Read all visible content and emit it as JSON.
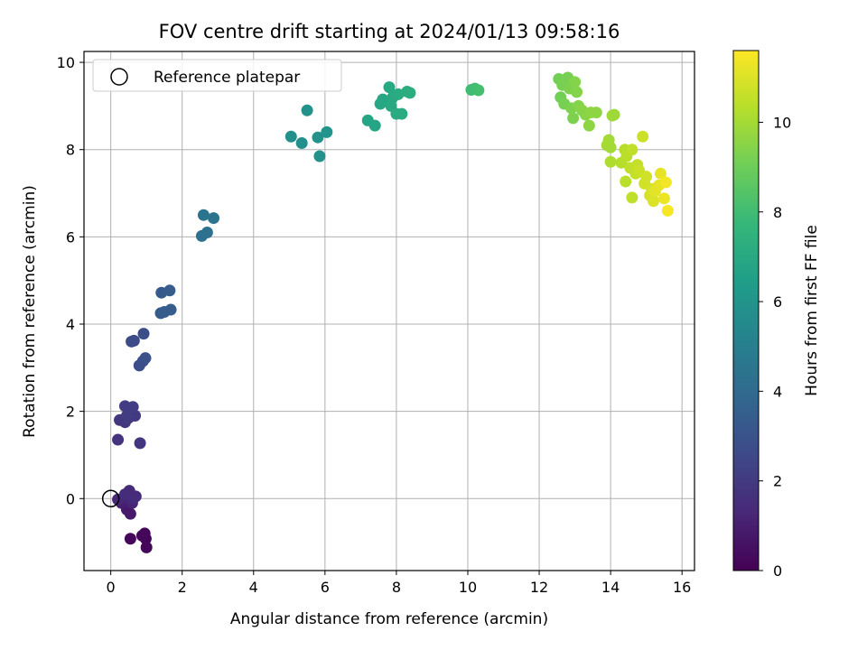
{
  "chart_data": {
    "type": "scatter",
    "title": "FOV centre drift starting at 2024/01/13 09:58:16",
    "xlabel": "Angular distance from reference (arcmin)",
    "ylabel": "Rotation from reference (arcmin)",
    "xlim": [
      -0.75,
      16.35
    ],
    "ylim": [
      -1.65,
      10.25
    ],
    "xticks": [
      0,
      2,
      4,
      6,
      8,
      10,
      12,
      14,
      16
    ],
    "yticks": [
      0,
      2,
      4,
      6,
      8,
      10
    ],
    "grid": true,
    "legend": {
      "placement": "upper-left",
      "label": "Reference platepar"
    },
    "reference_point": {
      "x": 0,
      "y": 0
    },
    "colorbar": {
      "label": "Hours from first FF file",
      "range": [
        0,
        11.6
      ],
      "ticks": [
        0,
        2,
        4,
        6,
        8,
        10
      ],
      "colormap": [
        "#440154",
        "#482878",
        "#3e4989",
        "#31688e",
        "#26828e",
        "#1f9e89",
        "#35b779",
        "#6ece58",
        "#b5de2b",
        "#fde725"
      ]
    },
    "points": [
      {
        "x": 0.95,
        "y": -0.8,
        "h": 0.1
      },
      {
        "x": 0.98,
        "y": -0.92,
        "h": 0.1
      },
      {
        "x": 1.0,
        "y": -1.12,
        "h": 0.2
      },
      {
        "x": 0.55,
        "y": -0.92,
        "h": 0.2
      },
      {
        "x": 0.88,
        "y": -0.85,
        "h": 0.2
      },
      {
        "x": 0.55,
        "y": -0.35,
        "h": 0.8
      },
      {
        "x": 0.45,
        "y": -0.25,
        "h": 0.8
      },
      {
        "x": 0.3,
        "y": -0.1,
        "h": 1.0
      },
      {
        "x": 0.5,
        "y": 0.05,
        "h": 1.0
      },
      {
        "x": 0.6,
        "y": -0.1,
        "h": 1.2
      },
      {
        "x": 0.45,
        "y": 0.0,
        "h": 1.2
      },
      {
        "x": 0.2,
        "y": -0.02,
        "h": 1.3
      },
      {
        "x": 0.7,
        "y": 0.05,
        "h": 1.4
      },
      {
        "x": 0.52,
        "y": 0.18,
        "h": 1.4
      },
      {
        "x": 0.62,
        "y": 0.02,
        "h": 1.5
      },
      {
        "x": 0.4,
        "y": 0.1,
        "h": 1.5
      },
      {
        "x": 0.2,
        "y": 1.35,
        "h": 1.7
      },
      {
        "x": 0.82,
        "y": 1.27,
        "h": 1.8
      },
      {
        "x": 0.25,
        "y": 1.8,
        "h": 1.9
      },
      {
        "x": 0.4,
        "y": 1.75,
        "h": 1.9
      },
      {
        "x": 0.5,
        "y": 1.85,
        "h": 2.0
      },
      {
        "x": 0.68,
        "y": 1.9,
        "h": 2.0
      },
      {
        "x": 0.4,
        "y": 2.12,
        "h": 2.1
      },
      {
        "x": 0.62,
        "y": 2.1,
        "h": 2.1
      },
      {
        "x": 0.45,
        "y": 1.9,
        "h": 2.1
      },
      {
        "x": 0.58,
        "y": 3.6,
        "h": 2.7
      },
      {
        "x": 0.65,
        "y": 3.62,
        "h": 2.7
      },
      {
        "x": 0.92,
        "y": 3.78,
        "h": 2.8
      },
      {
        "x": 0.8,
        "y": 3.05,
        "h": 2.8
      },
      {
        "x": 0.9,
        "y": 3.15,
        "h": 2.8
      },
      {
        "x": 0.97,
        "y": 3.22,
        "h": 2.9
      },
      {
        "x": 1.4,
        "y": 4.25,
        "h": 3.3
      },
      {
        "x": 1.42,
        "y": 4.72,
        "h": 3.3
      },
      {
        "x": 1.65,
        "y": 4.77,
        "h": 3.4
      },
      {
        "x": 1.68,
        "y": 4.33,
        "h": 3.4
      },
      {
        "x": 1.5,
        "y": 4.28,
        "h": 3.4
      },
      {
        "x": 2.55,
        "y": 6.02,
        "h": 4.3
      },
      {
        "x": 2.7,
        "y": 6.1,
        "h": 4.3
      },
      {
        "x": 2.6,
        "y": 6.5,
        "h": 4.4
      },
      {
        "x": 2.88,
        "y": 6.43,
        "h": 4.4
      },
      {
        "x": 5.05,
        "y": 8.3,
        "h": 5.8
      },
      {
        "x": 5.35,
        "y": 8.15,
        "h": 5.8
      },
      {
        "x": 5.5,
        "y": 8.9,
        "h": 5.9
      },
      {
        "x": 5.8,
        "y": 8.28,
        "h": 5.9
      },
      {
        "x": 5.85,
        "y": 7.85,
        "h": 5.9
      },
      {
        "x": 6.05,
        "y": 8.4,
        "h": 6.0
      },
      {
        "x": 7.2,
        "y": 8.67,
        "h": 6.8
      },
      {
        "x": 7.4,
        "y": 8.55,
        "h": 6.8
      },
      {
        "x": 7.55,
        "y": 9.05,
        "h": 6.9
      },
      {
        "x": 7.62,
        "y": 9.15,
        "h": 6.9
      },
      {
        "x": 7.8,
        "y": 9.43,
        "h": 7.0
      },
      {
        "x": 7.85,
        "y": 9.0,
        "h": 7.0
      },
      {
        "x": 7.9,
        "y": 9.2,
        "h": 7.0
      },
      {
        "x": 8.0,
        "y": 8.82,
        "h": 7.1
      },
      {
        "x": 8.05,
        "y": 9.27,
        "h": 7.1
      },
      {
        "x": 8.15,
        "y": 8.82,
        "h": 7.1
      },
      {
        "x": 8.3,
        "y": 9.33,
        "h": 7.2
      },
      {
        "x": 8.38,
        "y": 9.3,
        "h": 7.2
      },
      {
        "x": 10.1,
        "y": 9.37,
        "h": 8.0
      },
      {
        "x": 10.2,
        "y": 9.4,
        "h": 8.0
      },
      {
        "x": 10.3,
        "y": 9.36,
        "h": 8.1
      },
      {
        "x": 12.55,
        "y": 9.62,
        "h": 9.1
      },
      {
        "x": 12.6,
        "y": 9.2,
        "h": 9.1
      },
      {
        "x": 12.65,
        "y": 9.48,
        "h": 9.2
      },
      {
        "x": 12.7,
        "y": 9.05,
        "h": 9.2
      },
      {
        "x": 12.8,
        "y": 9.65,
        "h": 9.2
      },
      {
        "x": 12.85,
        "y": 9.4,
        "h": 9.3
      },
      {
        "x": 12.9,
        "y": 8.95,
        "h": 9.3
      },
      {
        "x": 12.95,
        "y": 8.72,
        "h": 9.3
      },
      {
        "x": 13.0,
        "y": 9.55,
        "h": 9.4
      },
      {
        "x": 13.05,
        "y": 9.32,
        "h": 9.4
      },
      {
        "x": 13.1,
        "y": 9.0,
        "h": 9.4
      },
      {
        "x": 13.2,
        "y": 8.9,
        "h": 9.5
      },
      {
        "x": 13.3,
        "y": 8.8,
        "h": 9.5
      },
      {
        "x": 13.4,
        "y": 8.55,
        "h": 9.6
      },
      {
        "x": 13.45,
        "y": 8.85,
        "h": 9.6
      },
      {
        "x": 13.6,
        "y": 8.85,
        "h": 9.6
      },
      {
        "x": 14.05,
        "y": 8.78,
        "h": 9.9
      },
      {
        "x": 14.1,
        "y": 8.8,
        "h": 9.9
      },
      {
        "x": 13.95,
        "y": 8.22,
        "h": 10.0
      },
      {
        "x": 14.0,
        "y": 8.05,
        "h": 10.0
      },
      {
        "x": 13.9,
        "y": 8.1,
        "h": 10.0
      },
      {
        "x": 14.0,
        "y": 7.72,
        "h": 10.2
      },
      {
        "x": 14.3,
        "y": 7.7,
        "h": 10.3
      },
      {
        "x": 14.4,
        "y": 8.0,
        "h": 10.3
      },
      {
        "x": 14.42,
        "y": 7.27,
        "h": 10.4
      },
      {
        "x": 14.45,
        "y": 7.85,
        "h": 10.4
      },
      {
        "x": 14.55,
        "y": 7.58,
        "h": 10.5
      },
      {
        "x": 14.6,
        "y": 8.0,
        "h": 10.5
      },
      {
        "x": 14.6,
        "y": 6.9,
        "h": 10.5
      },
      {
        "x": 14.7,
        "y": 7.45,
        "h": 10.6
      },
      {
        "x": 14.75,
        "y": 7.65,
        "h": 10.6
      },
      {
        "x": 14.8,
        "y": 7.52,
        "h": 10.7
      },
      {
        "x": 14.9,
        "y": 8.3,
        "h": 10.7
      },
      {
        "x": 14.95,
        "y": 7.22,
        "h": 10.8
      },
      {
        "x": 15.0,
        "y": 7.38,
        "h": 10.8
      },
      {
        "x": 15.1,
        "y": 6.95,
        "h": 10.9
      },
      {
        "x": 15.15,
        "y": 7.1,
        "h": 10.9
      },
      {
        "x": 15.2,
        "y": 6.82,
        "h": 11.0
      },
      {
        "x": 15.25,
        "y": 7.05,
        "h": 11.1
      },
      {
        "x": 15.35,
        "y": 7.18,
        "h": 11.2
      },
      {
        "x": 15.4,
        "y": 7.45,
        "h": 11.2
      },
      {
        "x": 15.5,
        "y": 6.88,
        "h": 11.3
      },
      {
        "x": 15.55,
        "y": 7.25,
        "h": 11.4
      },
      {
        "x": 15.6,
        "y": 6.6,
        "h": 11.5
      }
    ]
  }
}
